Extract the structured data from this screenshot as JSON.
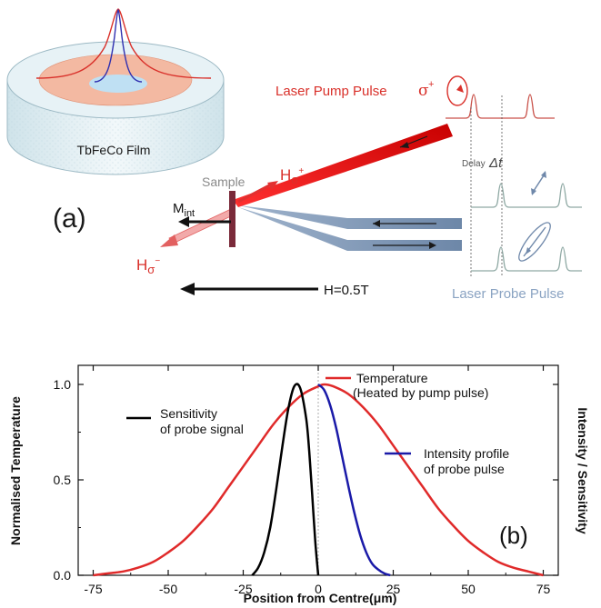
{
  "panel_a": {
    "film_label": "TbFeCo Film",
    "panel_label": "(a)",
    "pump_label": "Laser Pump Pulse",
    "sigma_symbol": "σ",
    "sigma_sup": "+",
    "delay_label": "Delay",
    "delta_t": "Δt",
    "sample_label": "Sample",
    "m_int_main": "M",
    "m_int_sub": "int",
    "h_plus_main": "H",
    "h_plus_sub": "σ",
    "h_plus_sup": "+",
    "h_minus_main": "H",
    "h_minus_sub": "σ",
    "h_minus_sup": "−",
    "field_label": "H=0.5T",
    "probe_label": "Laser Probe Pulse",
    "colors": {
      "pump": "#d9302a",
      "probe": "#8aa3c2",
      "sample": "#7a2a3a"
    }
  },
  "panel_b": {
    "panel_label": "(b)",
    "temp_label_line1": "Temperature",
    "temp_label_line2": "(Heated by pump pulse)",
    "sens_label_line1": "Sensitivity",
    "sens_label_line2": "of probe signal",
    "int_label_line1": "Intensity profile",
    "int_label_line2": "of probe pulse",
    "colors": {
      "temperature": "#e02a2a",
      "sensitivity": "#000000",
      "intensity": "#1a1aa8"
    }
  },
  "chart_data": {
    "type": "line",
    "xlabel": "Position from Centre(μm)",
    "ylabel": "Normalised Temperature",
    "y2label": "Intensity / Sensitivity",
    "xlim": [
      -80,
      80
    ],
    "ylim": [
      0,
      1.1
    ],
    "xticks": [
      -75,
      -50,
      -25,
      0,
      25,
      50,
      75
    ],
    "xtick_labels": [
      "-75",
      "-50",
      "-25",
      "0",
      "25",
      "50",
      "75"
    ],
    "yticks": [
      0.0,
      0.5,
      1.0
    ],
    "ytick_labels": [
      "0.0",
      "0.5",
      "1.0"
    ],
    "series": [
      {
        "name": "Temperature",
        "x": [
          -75,
          -70,
          -65,
          -60,
          -55,
          -50,
          -45,
          -40,
          -35,
          -30,
          -25,
          -20,
          -15,
          -10,
          -5,
          0,
          2,
          5,
          10,
          15,
          20,
          25,
          30,
          35,
          40,
          45,
          50,
          55,
          60,
          65,
          70,
          75
        ],
        "y": [
          0.0,
          0.01,
          0.02,
          0.04,
          0.07,
          0.12,
          0.18,
          0.26,
          0.35,
          0.46,
          0.57,
          0.68,
          0.79,
          0.88,
          0.95,
          0.99,
          1.0,
          0.99,
          0.95,
          0.88,
          0.79,
          0.68,
          0.57,
          0.46,
          0.35,
          0.26,
          0.18,
          0.12,
          0.07,
          0.04,
          0.02,
          0.0
        ]
      },
      {
        "name": "Sensitivity",
        "x": [
          -22,
          -20,
          -18,
          -16,
          -14,
          -12,
          -10,
          -8,
          -6,
          -4,
          -3,
          -2,
          -1,
          0
        ],
        "y": [
          0.0,
          0.04,
          0.12,
          0.25,
          0.45,
          0.67,
          0.87,
          0.99,
          0.98,
          0.82,
          0.65,
          0.42,
          0.18,
          0.0
        ]
      },
      {
        "name": "Intensity profile",
        "x": [
          0,
          2,
          4,
          6,
          8,
          10,
          12,
          14,
          16,
          18,
          20,
          22,
          24
        ],
        "y": [
          1.0,
          0.97,
          0.89,
          0.77,
          0.62,
          0.47,
          0.33,
          0.21,
          0.12,
          0.06,
          0.03,
          0.01,
          0.0
        ]
      }
    ]
  }
}
